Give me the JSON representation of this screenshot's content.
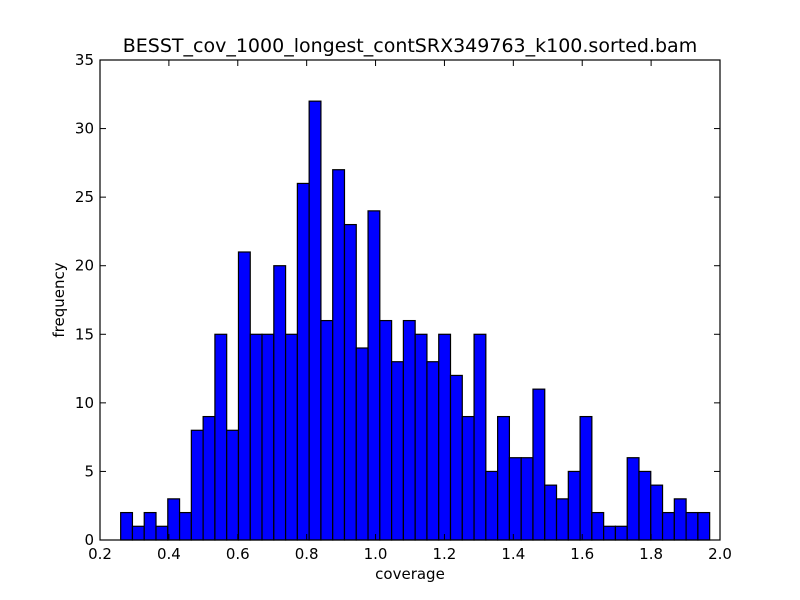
{
  "chart_data": {
    "type": "bar",
    "title": "BESST_cov_1000_longest_contSRX349763_k100.sorted.bam",
    "xlabel": "coverage",
    "ylabel": "frequency",
    "xlim": [
      0.2,
      2.0
    ],
    "ylim": [
      0,
      35
    ],
    "xticks": [
      "0.2",
      "0.4",
      "0.6",
      "0.8",
      "1.0",
      "1.2",
      "1.4",
      "1.6",
      "1.8",
      "2.0"
    ],
    "yticks": [
      "0",
      "5",
      "10",
      "15",
      "20",
      "25",
      "30",
      "35"
    ],
    "grid": false,
    "bar_color": "#0000ff",
    "bin_start": 0.26,
    "bin_width": 0.0342,
    "values": [
      2,
      1,
      2,
      1,
      3,
      2,
      8,
      9,
      15,
      8,
      21,
      15,
      15,
      20,
      15,
      26,
      32,
      16,
      27,
      23,
      14,
      24,
      16,
      13,
      16,
      15,
      13,
      15,
      12,
      9,
      15,
      5,
      9,
      6,
      6,
      11,
      4,
      3,
      5,
      9,
      2,
      1,
      1,
      6,
      5,
      4,
      2,
      3,
      2,
      2
    ]
  }
}
